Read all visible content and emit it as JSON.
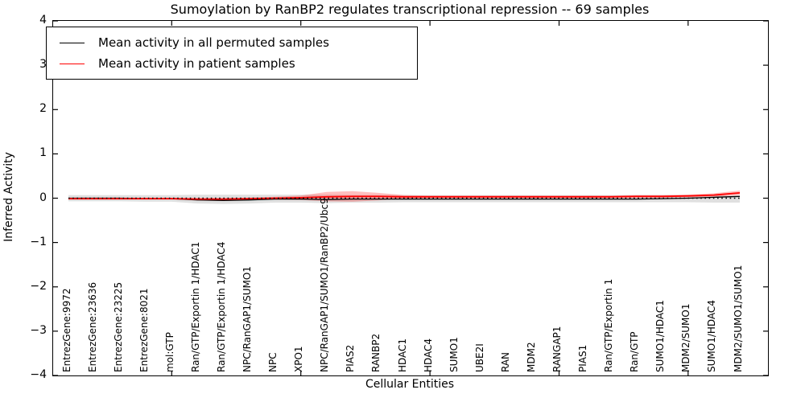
{
  "title": "Sumoylation by RanBP2 regulates transcriptional repression -- 69 samples",
  "axes": {
    "x_label": "Cellular Entities",
    "y_label": "Inferred Activity",
    "y_tick_labels": [
      "4",
      "3",
      "2",
      "1",
      "0",
      "−1",
      "−2",
      "−3",
      "−4"
    ],
    "y_tick_values": [
      4,
      3,
      2,
      1,
      0,
      -1,
      -2,
      -3,
      -4
    ]
  },
  "legend": {
    "items": [
      {
        "label": "Mean activity in all permuted samples",
        "color": "#000000"
      },
      {
        "label": "Mean activity in patient samples",
        "color": "#ff0000"
      }
    ]
  },
  "colors": {
    "permuted_line": "#000000",
    "patient_line": "#ff0000",
    "permuted_band": "#bbbbbb",
    "patient_band": "#ff0000",
    "zero_line": "#000000"
  },
  "chart_data": {
    "type": "line",
    "title": "Sumoylation by RanBP2 regulates transcriptional repression -- 69 samples",
    "xlabel": "Cellular Entities",
    "ylabel": "Inferred Activity",
    "ylim": [
      -4,
      4
    ],
    "grid": false,
    "legend_position": "upper left",
    "zero_reference_line": 0,
    "categories": [
      "EntrezGene:9972",
      "EntrezGene:23636",
      "EntrezGene:23225",
      "EntrezGene:8021",
      "mol:GTP",
      "Ran/GTP/Exportin 1/HDAC1",
      "Ran/GTP/Exportin 1/HDAC4",
      "NPC/RanGAP1/SUMO1",
      "NPC",
      "XPO1",
      "NPC/RanGAP1/SUMO1/RanBP2/Ubc9",
      "PIAS2",
      "RANBP2",
      "HDAC1",
      "HDAC4",
      "SUMO1",
      "UBE2I",
      "RAN",
      "MDM2",
      "RANGAP1",
      "PIAS1",
      "Ran/GTP/Exportin 1",
      "Ran/GTP",
      "SUMO1/HDAC1",
      "MDM2/SUMO1",
      "SUMO1/HDAC4",
      "MDM2/SUMO1/SUMO1"
    ],
    "x_major_tick_indices": [
      4,
      9,
      14,
      19,
      24
    ],
    "series": [
      {
        "name": "Mean activity in all permuted samples",
        "color": "#000000",
        "values": [
          0.0,
          0.0,
          0.0,
          -0.01,
          -0.01,
          -0.04,
          -0.05,
          -0.04,
          -0.02,
          -0.02,
          -0.03,
          -0.02,
          -0.02,
          -0.02,
          -0.02,
          -0.02,
          -0.02,
          -0.02,
          -0.02,
          -0.02,
          -0.02,
          -0.02,
          -0.02,
          -0.01,
          0.0,
          0.02,
          0.04
        ],
        "band_upper": [
          0.07,
          0.07,
          0.07,
          0.07,
          0.07,
          0.08,
          0.08,
          0.08,
          0.08,
          0.08,
          0.08,
          0.07,
          0.07,
          0.07,
          0.07,
          0.07,
          0.07,
          0.07,
          0.07,
          0.07,
          0.07,
          0.07,
          0.07,
          0.07,
          0.07,
          0.07,
          0.06
        ],
        "band_lower": [
          -0.07,
          -0.07,
          -0.07,
          -0.08,
          -0.08,
          -0.12,
          -0.13,
          -0.12,
          -0.1,
          -0.1,
          -0.11,
          -0.1,
          -0.1,
          -0.09,
          -0.09,
          -0.09,
          -0.09,
          -0.09,
          -0.09,
          -0.09,
          -0.09,
          -0.09,
          -0.09,
          -0.09,
          -0.09,
          -0.1,
          -0.1
        ]
      },
      {
        "name": "Mean activity in patient samples",
        "color": "#ff0000",
        "values": [
          -0.01,
          -0.01,
          -0.01,
          -0.01,
          -0.01,
          -0.02,
          -0.02,
          -0.01,
          0.0,
          0.01,
          0.03,
          0.04,
          0.04,
          0.03,
          0.03,
          0.03,
          0.03,
          0.03,
          0.03,
          0.03,
          0.03,
          0.03,
          0.04,
          0.04,
          0.05,
          0.07,
          0.12
        ],
        "band_upper": [
          0.01,
          0.01,
          0.01,
          0.01,
          0.01,
          0.0,
          0.0,
          0.01,
          0.03,
          0.06,
          0.14,
          0.16,
          0.12,
          0.07,
          0.06,
          0.06,
          0.06,
          0.06,
          0.06,
          0.06,
          0.06,
          0.06,
          0.07,
          0.07,
          0.08,
          0.11,
          0.17
        ],
        "band_lower": [
          -0.03,
          -0.03,
          -0.03,
          -0.03,
          -0.03,
          -0.04,
          -0.04,
          -0.03,
          -0.03,
          -0.04,
          -0.07,
          -0.08,
          -0.05,
          -0.01,
          0.0,
          0.0,
          0.0,
          0.0,
          0.0,
          0.0,
          0.0,
          0.0,
          0.01,
          0.01,
          0.02,
          0.03,
          0.07
        ]
      }
    ]
  }
}
